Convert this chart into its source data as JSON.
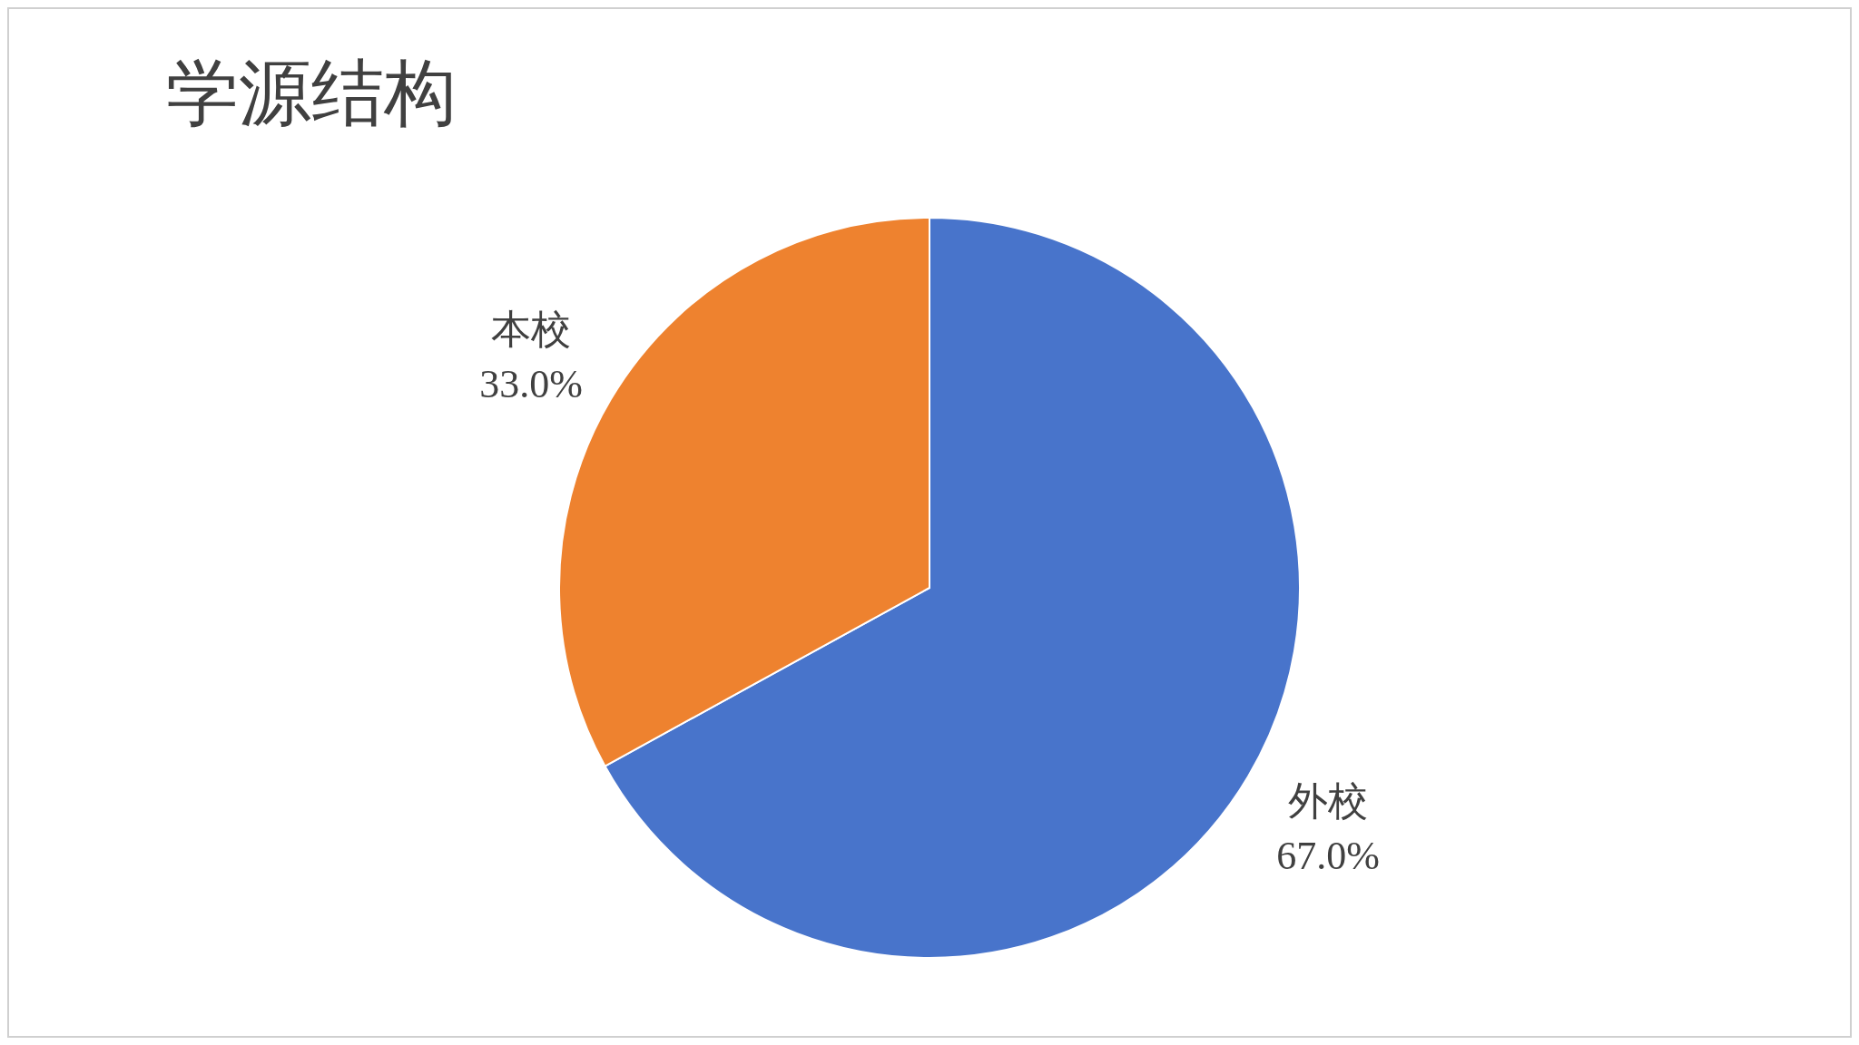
{
  "chart_data": {
    "type": "pie",
    "title": "学源结构",
    "categories": [
      "外校",
      "本校"
    ],
    "values": [
      67.0,
      33.0
    ],
    "colors": [
      "#4874cb",
      "#ee822f"
    ],
    "value_labels": [
      "67.0%",
      "33.0%"
    ],
    "legend": false
  }
}
